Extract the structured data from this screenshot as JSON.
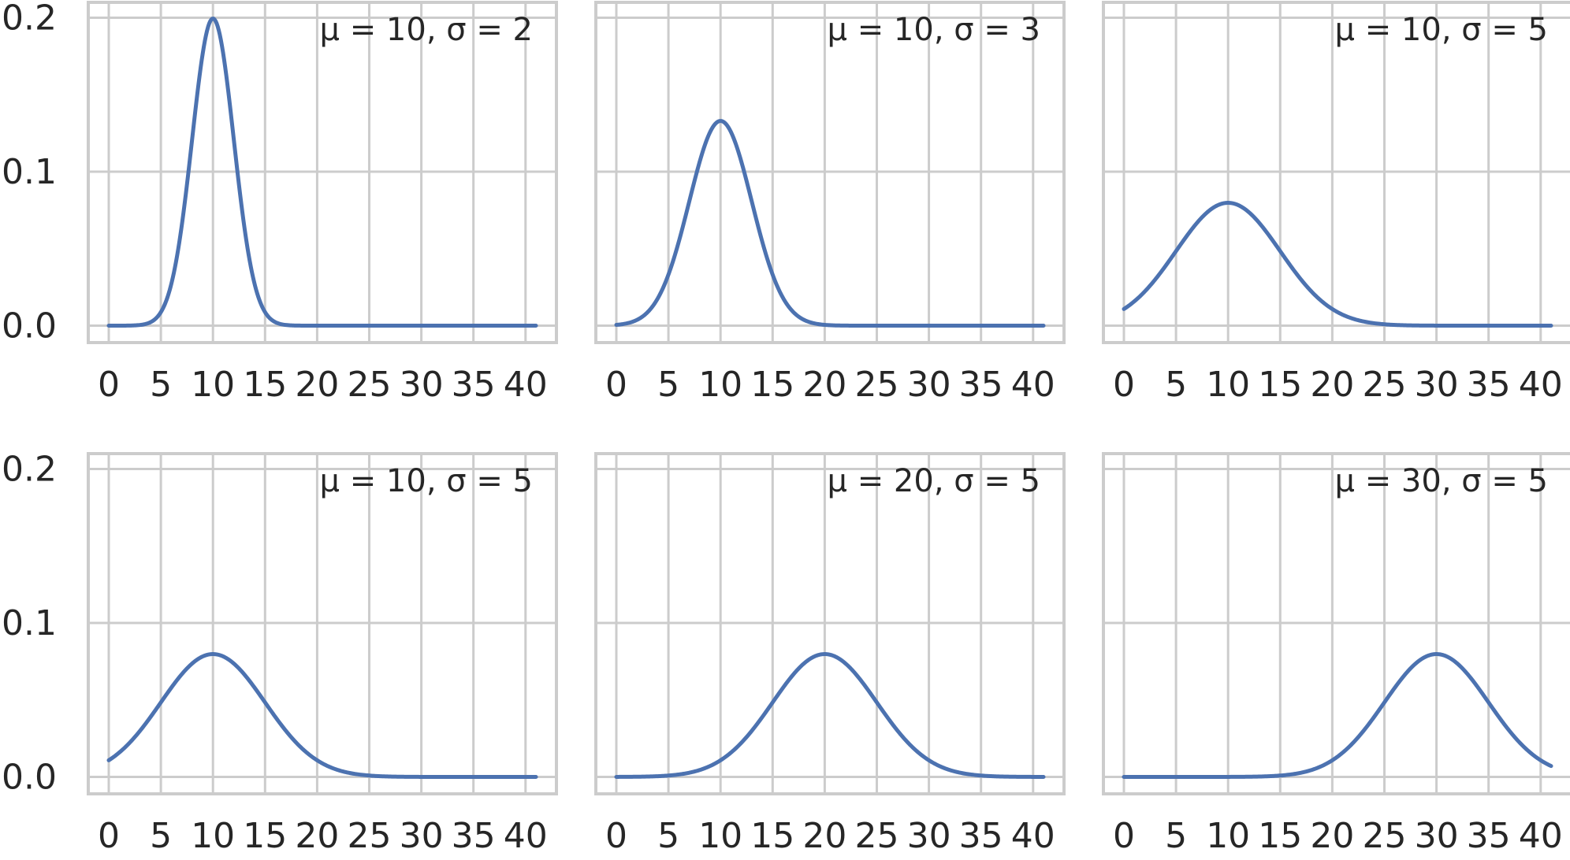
{
  "chart_data": [
    {
      "type": "line",
      "annotation": "μ = 10, σ = 2",
      "mu": 10,
      "sigma": 2
    },
    {
      "type": "line",
      "annotation": "μ = 10, σ = 3",
      "mu": 10,
      "sigma": 3
    },
    {
      "type": "line",
      "annotation": "μ = 10, σ = 5",
      "mu": 10,
      "sigma": 5
    },
    {
      "type": "line",
      "annotation": "μ = 10, σ = 5",
      "mu": 10,
      "sigma": 5
    },
    {
      "type": "line",
      "annotation": "μ = 20, σ = 5",
      "mu": 20,
      "sigma": 5
    },
    {
      "type": "line",
      "annotation": "μ = 30, σ = 5",
      "mu": 30,
      "sigma": 5
    }
  ],
  "axes": {
    "x_range": [
      0,
      41
    ],
    "x_ticks": [
      "0",
      "5",
      "10",
      "15",
      "20",
      "25",
      "30",
      "35",
      "40"
    ],
    "x_tick_values": [
      0,
      5,
      10,
      15,
      20,
      25,
      30,
      35,
      40
    ],
    "y_ticks": [
      "0.0",
      "0.1",
      "0.2"
    ],
    "y_tick_values": [
      0.0,
      0.1,
      0.2
    ],
    "ylim": [
      -0.011,
      0.21
    ],
    "grid": true,
    "shared_y": true
  },
  "colors": {
    "line": "#4c72b0",
    "grid": "#cccccc",
    "text": "#262626"
  }
}
